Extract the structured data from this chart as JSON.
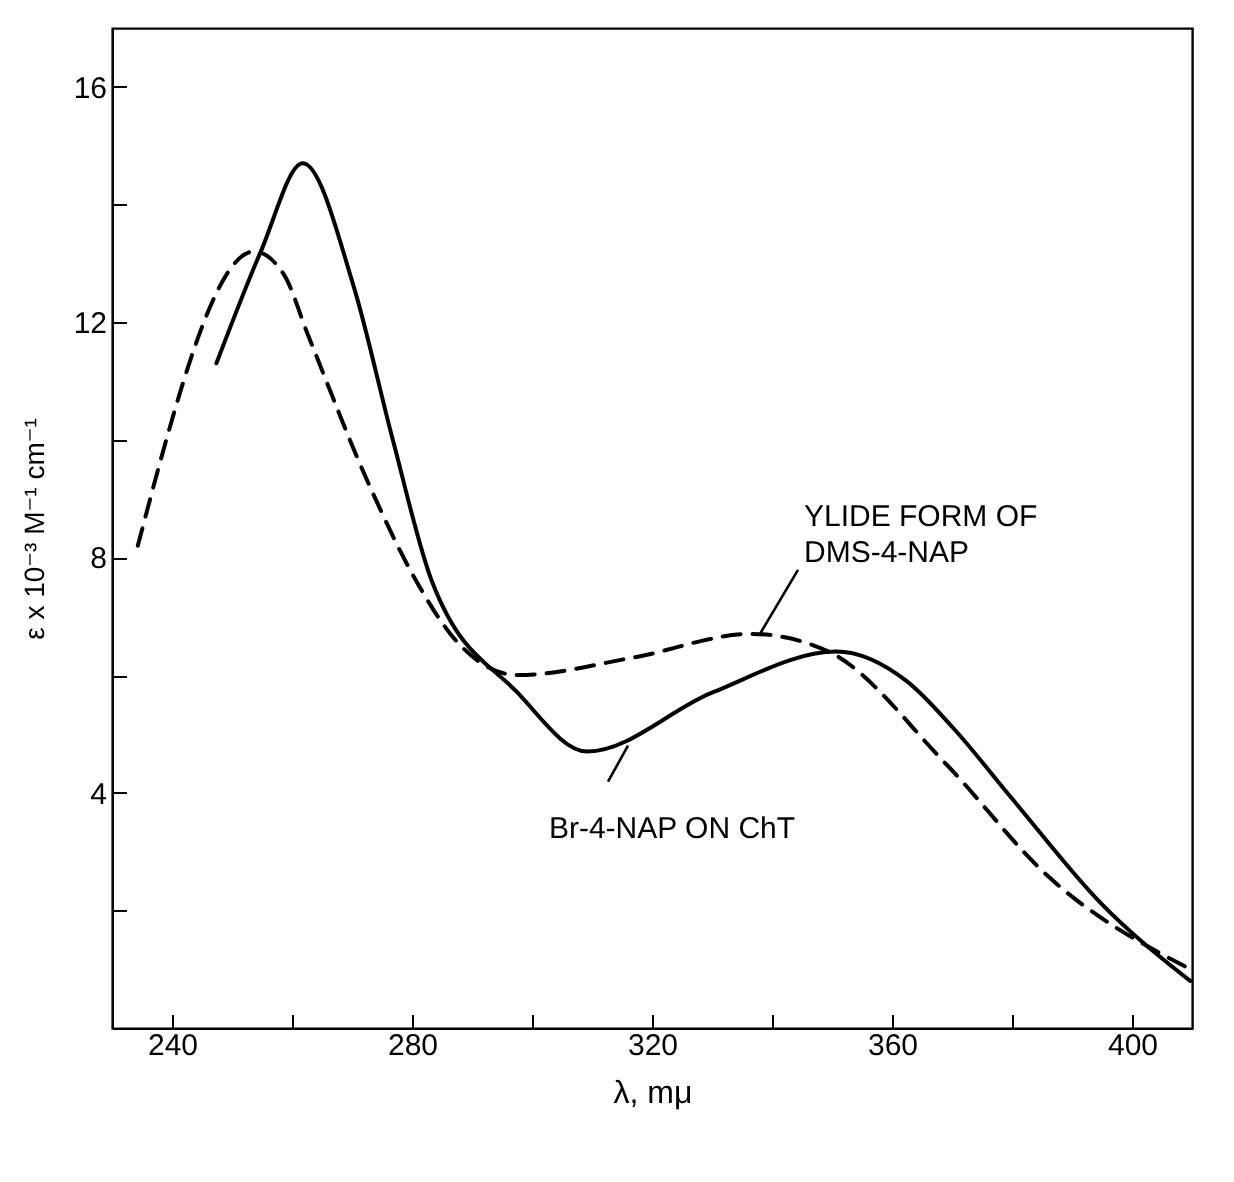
{
  "chart_data": {
    "type": "line",
    "xlabel": "λ, mμ",
    "ylabel": "ε x 10⁻³ M⁻¹ cm⁻¹",
    "xlim": [
      230,
      410
    ],
    "ylim": [
      0,
      17
    ],
    "xticks": [
      240,
      {
        "value": 260,
        "label": null
      },
      280,
      {
        "value": 300,
        "label": null
      },
      320,
      {
        "value": 340,
        "label": null
      },
      360,
      {
        "value": 380,
        "label": null
      },
      400
    ],
    "yticks": [
      {
        "value": 2,
        "label": null
      },
      4,
      {
        "value": 6,
        "label": null
      },
      8,
      {
        "value": 10,
        "label": null
      },
      12,
      {
        "value": 14,
        "label": null
      },
      16
    ],
    "grid": false,
    "marker": "none",
    "series": [
      {
        "color": "#000000",
        "line_style": "solid",
        "x": [
          247.4,
          254.8,
          261.8,
          270.3,
          276.8,
          283.3,
          297.6,
          309.2,
          330,
          350.7,
          362.4,
          370.2,
          380,
          395,
          409.7
        ],
        "values": [
          11.3,
          13.2,
          14.7,
          12.6,
          10.0,
          7.6,
          5.7,
          4.7,
          5.7,
          6.4,
          5.9,
          5.1,
          3.9,
          2.1,
          0.8
        ]
      },
      {
        "color": "#000000",
        "line_style": "dashed",
        "x": [
          234.3,
          253.7,
          258.7,
          262.6,
          273,
          280.7,
          287.2,
          297.6,
          317,
          336.5,
          349.4,
          368.9,
          385.8,
          409.7
        ],
        "values": [
          8.2,
          13.2,
          12.8,
          11.8,
          9.2,
          7.6,
          6.6,
          6.0,
          6.3,
          6.7,
          6.4,
          4.5,
          2.6,
          1.0
        ]
      }
    ],
    "annotations": [
      {
        "text": "YLIDE FORM OF\nDMS-4-NAP",
        "x": 338,
        "y": 6.7
      },
      {
        "text": "Br-4-NAP ON ChT",
        "x": 316,
        "y": 4.8
      }
    ]
  }
}
